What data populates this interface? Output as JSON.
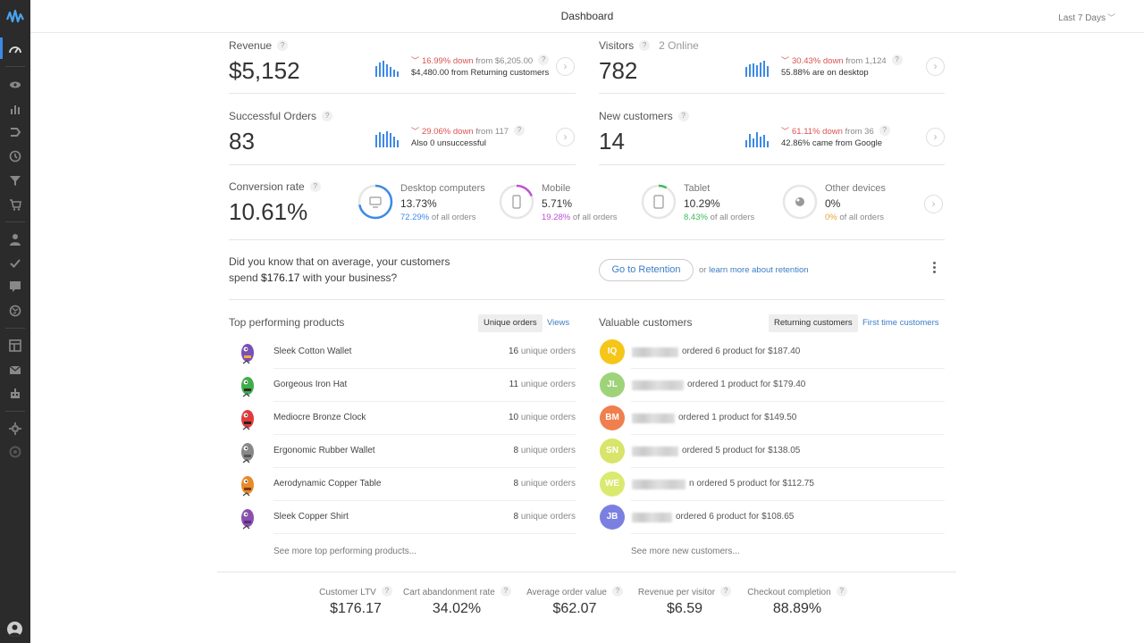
{
  "header": {
    "title": "Dashboard",
    "range": "Last 7 Days"
  },
  "colors": {
    "accent": "#3d8ae6",
    "down": "#d9534f",
    "link": "#3b7dc4"
  },
  "sidebar": {
    "icons": [
      "logo-icon",
      "dashboard-icon",
      "eye-icon",
      "bar-chart-icon",
      "funnel-arrows-icon",
      "history-icon",
      "filter-icon",
      "cart-icon",
      "user-icon",
      "check-icon",
      "chat-icon",
      "globe-icon",
      "layout-icon",
      "mail-icon",
      "robot-icon",
      "settings-icon",
      "support-icon",
      "account-icon"
    ]
  },
  "metrics": {
    "revenue": {
      "label": "Revenue",
      "value": "$5,152",
      "change": "16.99% down",
      "from": "from $6,205.00",
      "note": "$4,480.00 from Returning customers"
    },
    "visitors": {
      "label": "Visitors",
      "sub": "2 Online",
      "value": "782",
      "change": "30.43% down",
      "from": "from 1,124",
      "note": "55.88% are on desktop"
    },
    "orders": {
      "label": "Successful Orders",
      "value": "83",
      "change": "29.06% down",
      "from": "from 117",
      "note": "Also 0 unsuccessful"
    },
    "new_customers": {
      "label": "New customers",
      "value": "14",
      "change": "61.11% down",
      "from": "from 36",
      "note": "42.86% came from Google"
    }
  },
  "conversion": {
    "label": "Conversion rate",
    "value": "10.61%",
    "devices": [
      {
        "name": "Desktop computers",
        "rate": "13.73%",
        "share": "72.29%",
        "suffix": "of all orders",
        "color": "#3d8ae6",
        "fill": 0.72
      },
      {
        "name": "Mobile",
        "rate": "5.71%",
        "share": "19.28%",
        "suffix": "of all orders",
        "color": "#c04fd4",
        "fill": 0.19
      },
      {
        "name": "Tablet",
        "rate": "10.29%",
        "share": "8.43%",
        "suffix": "of all orders",
        "color": "#3dbb5c",
        "fill": 0.08
      },
      {
        "name": "Other devices",
        "rate": "0%",
        "share": "0%",
        "suffix": "of all orders",
        "color": "#e8a23a",
        "fill": 0
      }
    ]
  },
  "info": {
    "line1": "Did you know that on average, your customers",
    "line2a": "spend",
    "amount": "$176.17",
    "line2b": "with your business?",
    "button": "Go to Retention",
    "or": "or",
    "link": "learn more about retention"
  },
  "products": {
    "title": "Top performing products",
    "tab_active": "Unique orders",
    "tab_other": "Views",
    "items": [
      {
        "name": "Sleek Cotton Wallet",
        "count": "16",
        "unit": "unique orders"
      },
      {
        "name": "Gorgeous Iron Hat",
        "count": "11",
        "unit": "unique orders"
      },
      {
        "name": "Mediocre Bronze Clock",
        "count": "10",
        "unit": "unique orders"
      },
      {
        "name": "Ergonomic Rubber Wallet",
        "count": "8",
        "unit": "unique orders"
      },
      {
        "name": "Aerodynamic Copper Table",
        "count": "8",
        "unit": "unique orders"
      },
      {
        "name": "Sleek Copper Shirt",
        "count": "8",
        "unit": "unique orders"
      }
    ],
    "see_more": "See more top performing products..."
  },
  "customers": {
    "title": "Valuable customers",
    "tab_active": "Returning customers",
    "tab_other": "First time customers",
    "items": [
      {
        "initials": "IQ",
        "color": "#f5c518",
        "text": "ordered 6 product for $187.40"
      },
      {
        "initials": "JL",
        "color": "#9ed37a",
        "text": "ordered 1 product for $179.40"
      },
      {
        "initials": "BM",
        "color": "#f07f4e",
        "text": "ordered 1 product for $149.50"
      },
      {
        "initials": "SN",
        "color": "#d8e46a",
        "text": "ordered 5 product for $138.05"
      },
      {
        "initials": "WE",
        "color": "#d9ea6e",
        "text": "n ordered 5 product for $112.75"
      },
      {
        "initials": "JB",
        "color": "#7b7fe0",
        "text": "ordered 6 product for $108.65"
      }
    ],
    "see_more": "See more new customers..."
  },
  "stats": [
    {
      "label": "Customer LTV",
      "value": "$176.17"
    },
    {
      "label": "Cart abandonment rate",
      "value": "34.02%"
    },
    {
      "label": "Average order value",
      "value": "$62.07"
    },
    {
      "label": "Revenue per visitor",
      "value": "$6.59"
    },
    {
      "label": "Checkout completion",
      "value": "88.89%"
    }
  ]
}
